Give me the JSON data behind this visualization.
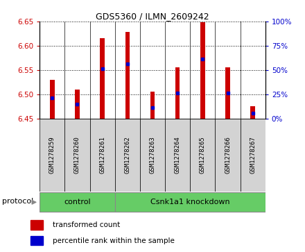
{
  "title": "GDS5360 / ILMN_2609242",
  "samples": [
    "GSM1278259",
    "GSM1278260",
    "GSM1278261",
    "GSM1278262",
    "GSM1278263",
    "GSM1278264",
    "GSM1278265",
    "GSM1278266",
    "GSM1278267"
  ],
  "bar_bottoms": [
    6.45,
    6.45,
    6.45,
    6.45,
    6.45,
    6.45,
    6.45,
    6.45,
    6.45
  ],
  "bar_tops": [
    6.53,
    6.51,
    6.615,
    6.628,
    6.505,
    6.555,
    6.648,
    6.555,
    6.475
  ],
  "percentile_values": [
    6.492,
    6.479,
    6.552,
    6.562,
    6.473,
    6.503,
    6.572,
    6.503,
    6.461
  ],
  "ylim_left": [
    6.45,
    6.65
  ],
  "ylim_right": [
    0,
    100
  ],
  "yticks_left": [
    6.45,
    6.5,
    6.55,
    6.6,
    6.65
  ],
  "yticks_right": [
    0,
    25,
    50,
    75,
    100
  ],
  "ytick_labels_right": [
    "0%",
    "25%",
    "50%",
    "75%",
    "100%"
  ],
  "bar_color": "#cc0000",
  "percentile_color": "#0000cc",
  "tick_label_color_left": "#cc0000",
  "tick_label_color_right": "#0000cc",
  "label_bg_color": "#d3d3d3",
  "green_color": "#66cc66",
  "legend_items": [
    {
      "label": "transformed count",
      "color": "#cc0000"
    },
    {
      "label": "percentile rank within the sample",
      "color": "#0000cc"
    }
  ],
  "control_count": 3,
  "knockdown_label": "Csnk1a1 knockdown",
  "control_label": "control",
  "protocol_label": "protocol"
}
